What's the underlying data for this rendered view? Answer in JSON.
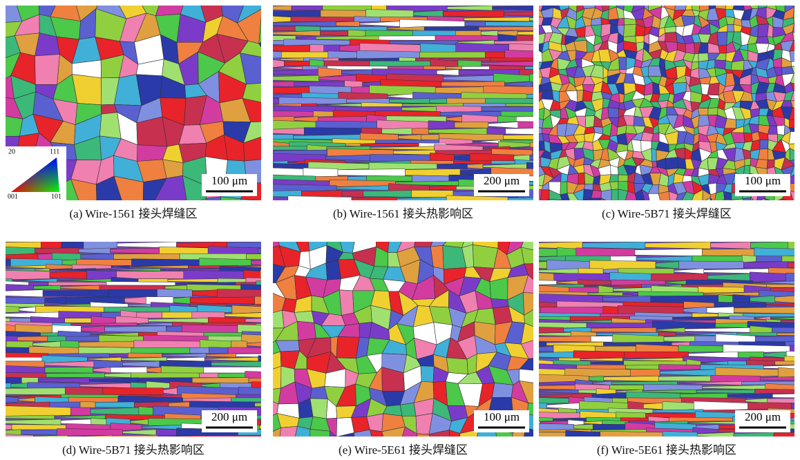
{
  "panels": [
    {
      "caption": "(a) Wire-1561 接头焊缝区",
      "scale_bar": "100 μm"
    },
    {
      "caption": "(b) Wire-1561 接头热影响区",
      "scale_bar": "200 μm"
    },
    {
      "caption": "(c) Wire-5B71 接头焊缝区",
      "scale_bar": "100 μm"
    },
    {
      "caption": "(d) Wire-5B71 接头热影响区",
      "scale_bar": "200 μm"
    },
    {
      "caption": "(e) Wire-5E61 接头焊缝区",
      "scale_bar": "100 μm"
    },
    {
      "caption": "(f) Wire-5E61 接头热影响区",
      "scale_bar": "200 μm"
    }
  ],
  "legend": {
    "labels": [
      "20",
      "111",
      "001",
      "101"
    ]
  }
}
